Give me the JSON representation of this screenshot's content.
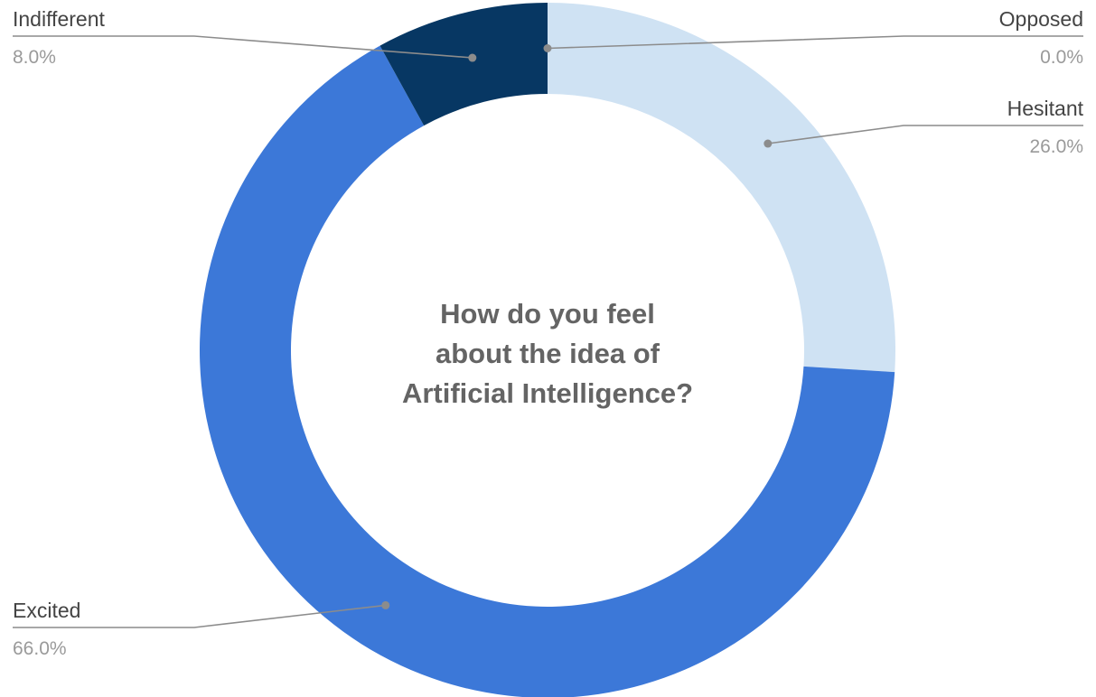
{
  "chart_data": {
    "type": "pie",
    "title_lines": [
      "How do you feel",
      "about the idea of",
      "Artificial Intelligence?"
    ],
    "categories": [
      "Opposed",
      "Hesitant",
      "Excited",
      "Indifferent"
    ],
    "values": [
      0.0,
      26.0,
      66.0,
      8.0
    ],
    "value_labels": [
      "0.0%",
      "26.0%",
      "66.0%",
      "8.0%"
    ],
    "colors": [
      "#cfe2f3",
      "#cfe2f3",
      "#3c78d8",
      "#073763"
    ],
    "donut": true,
    "legend": "callout-labels"
  }
}
